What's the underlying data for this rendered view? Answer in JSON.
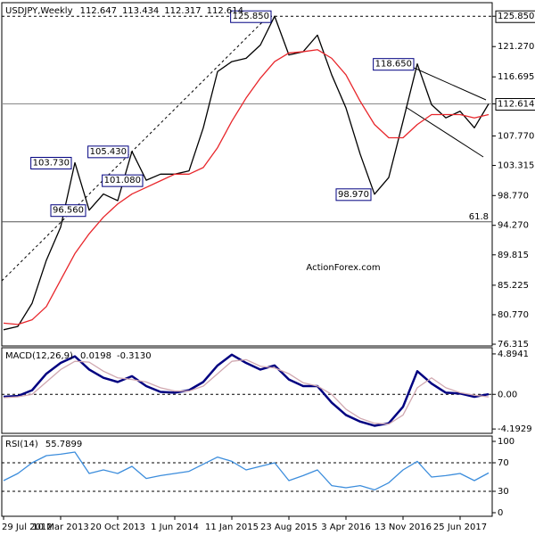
{
  "chart_data": [
    {
      "type": "line",
      "title": "USDJPY,Weekly",
      "readout": [
        112.647,
        113.434,
        112.317,
        112.614
      ],
      "watermark": "ActionForex.com",
      "categories": [
        "29 Jul 2012",
        null,
        null,
        null,
        "10 Mar 2013",
        null,
        null,
        null,
        "20 Oct 2013",
        null,
        null,
        null,
        "1 Jun 2014",
        null,
        null,
        null,
        "11 Jan 2015",
        null,
        null,
        null,
        "23 Aug 2015",
        null,
        null,
        null,
        "3 Apr 2016",
        null,
        null,
        null,
        "13 Nov 2016",
        null,
        null,
        null,
        "25 Jun 2017",
        null,
        null
      ],
      "series": [
        {
          "color": "#000000",
          "values": [
            78.5,
            79,
            82.5,
            89,
            94,
            103.73,
            96.56,
            99,
            98,
            105.43,
            101.08,
            102,
            102,
            102.5,
            109,
            117.5,
            119,
            119.5,
            121.5,
            125.85,
            120,
            120.5,
            123,
            117,
            112,
            105,
            98.97,
            101.5,
            110,
            118.65,
            112.5,
            110.5,
            111.5,
            109,
            112.614
          ],
          "value_labels": [
            null,
            null,
            null,
            null,
            null,
            "103.730",
            "96.560",
            null,
            null,
            "105.430",
            "101.080",
            null,
            null,
            null,
            null,
            null,
            null,
            null,
            null,
            "125.850",
            null,
            null,
            null,
            null,
            null,
            null,
            "98.970",
            null,
            null,
            "118.650",
            null,
            null,
            null,
            null,
            null
          ]
        },
        {
          "color": "#e8262b",
          "values": [
            79.5,
            79.3,
            80,
            82,
            86,
            90,
            93,
            95.5,
            97.5,
            99,
            100,
            101,
            102,
            102,
            103,
            106,
            110,
            113.5,
            116.5,
            119,
            120.3,
            120.5,
            120.8,
            119.5,
            117,
            113,
            109.5,
            107.5,
            107.5,
            109.5,
            111,
            111,
            111,
            110.5,
            111
          ]
        }
      ],
      "ylim": [
        76.05,
        127.9
      ],
      "yticks": [
        {
          "value": 125.85,
          "label": "125.850"
        },
        {
          "value": 121.27,
          "label": "121.270"
        },
        116.695,
        112.614,
        {
          "value": 107.77,
          "label": "107.770"
        },
        103.315,
        {
          "value": 98.77,
          "label": "98.770"
        },
        {
          "value": 94.27,
          "label": "94.270"
        },
        89.815,
        85.225,
        {
          "value": 80.77,
          "label": "80.770"
        },
        76.315
      ],
      "hlines": [
        {
          "value": 125.85,
          "style": "dashed"
        },
        {
          "value": 112.614,
          "style": "solid"
        }
      ],
      "fib_levels": [
        {
          "value": 94.8,
          "label": "61.8"
        }
      ]
    },
    {
      "type": "line",
      "title": "MACD(12,26,9)",
      "readout": [
        0.0198,
        {
          "value": -0.313,
          "label": "-0.3130"
        }
      ],
      "series": [
        {
          "color": "#000080",
          "values": [
            -0.3,
            -0.2,
            0.5,
            2.5,
            3.8,
            4.6,
            3.0,
            2.0,
            1.5,
            2.2,
            1.0,
            0.3,
            0.2,
            0.5,
            1.5,
            3.5,
            4.8,
            3.8,
            3.0,
            3.5,
            1.8,
            1.0,
            1.0,
            -1.0,
            -2.5,
            -3.3,
            -3.8,
            -3.5,
            -1.5,
            2.8,
            1.3,
            0.2,
            0.1,
            -0.3,
            0.0198
          ]
        },
        {
          "color": "#d0a8b0",
          "values": [
            -0.4,
            -0.3,
            0,
            1.5,
            3,
            4,
            3.9,
            2.8,
            2,
            1.8,
            1.5,
            0.8,
            0.4,
            0.4,
            1,
            2.5,
            4,
            4.2,
            3.4,
            3.2,
            2.5,
            1.4,
            1,
            0,
            -1.8,
            -2.9,
            -3.5,
            -3.6,
            -2.5,
            0.8,
            2,
            0.8,
            0.2,
            -0.1,
            -0.313
          ]
        }
      ],
      "ylim": [
        -4.72,
        5.64
      ],
      "yticks": [
        4.8941,
        {
          "value": 0,
          "label": "0.00"
        },
        -4.1929
      ],
      "hlines": [
        {
          "value": 0,
          "style": "dashed"
        }
      ]
    },
    {
      "type": "line",
      "title": "RSI(14)",
      "readout": [
        55.7899
      ],
      "series": [
        {
          "color": "#3c8ddc",
          "values": [
            45,
            55,
            70,
            80,
            82,
            85,
            55,
            60,
            55,
            65,
            48,
            52,
            55,
            58,
            68,
            78,
            72,
            60,
            65,
            70,
            45,
            52,
            60,
            38,
            35,
            38,
            32,
            42,
            60,
            72,
            50,
            52,
            55,
            45,
            55.7899
          ]
        }
      ],
      "ylim": [
        -5,
        107.5
      ],
      "yticks": [
        100,
        70,
        30,
        0
      ],
      "hlines": [
        {
          "value": 70,
          "style": "dashed"
        },
        {
          "value": 30,
          "style": "dashed"
        }
      ]
    }
  ]
}
